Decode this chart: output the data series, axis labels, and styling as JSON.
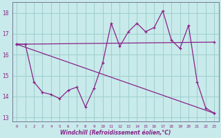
{
  "xlabel": "Windchill (Refroidissement éolien,°C)",
  "background_color": "#c8eaea",
  "grid_color": "#9ecece",
  "line_color": "#882288",
  "xlim": [
    -0.5,
    23.5
  ],
  "ylim": [
    12.8,
    18.5
  ],
  "xticks": [
    0,
    1,
    2,
    3,
    4,
    5,
    6,
    7,
    8,
    9,
    10,
    11,
    12,
    13,
    14,
    15,
    16,
    17,
    18,
    19,
    20,
    21,
    22,
    23
  ],
  "yticks": [
    13,
    14,
    15,
    16,
    17,
    18
  ],
  "line1_x": [
    0,
    1,
    2,
    3,
    4,
    5,
    6,
    7,
    8,
    9,
    10,
    11,
    12,
    13,
    14,
    15,
    16,
    17,
    18,
    19,
    20,
    21,
    22,
    23
  ],
  "line1_y": [
    16.5,
    16.5,
    14.7,
    14.2,
    14.1,
    13.9,
    14.3,
    14.45,
    13.5,
    14.4,
    15.6,
    17.5,
    16.4,
    17.1,
    17.5,
    17.1,
    17.3,
    18.1,
    16.7,
    16.3,
    17.4,
    14.7,
    13.45,
    13.2
  ],
  "line2_x": [
    0,
    23
  ],
  "line2_y": [
    16.5,
    16.6
  ],
  "line3_x": [
    0,
    23
  ],
  "line3_y": [
    16.5,
    13.2
  ]
}
